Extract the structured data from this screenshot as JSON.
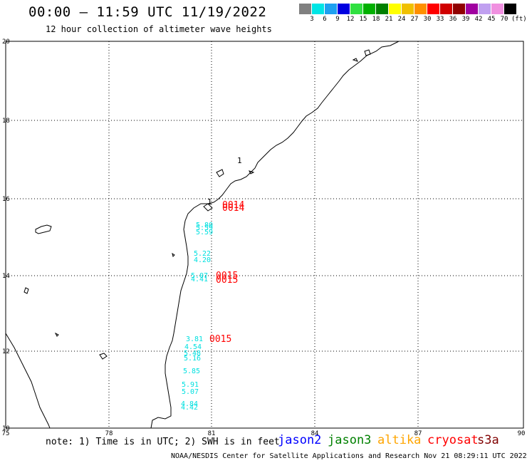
{
  "header": {
    "title": "00:00 – 11:59 UTC 11/19/2022",
    "subtitle": "12 hour collection of altimeter wave heights"
  },
  "color_scale": {
    "colors": [
      "#808080",
      "#00e5e5",
      "#1ea0f0",
      "#0000e0",
      "#30e040",
      "#00b000",
      "#008000",
      "#ffff00",
      "#f0c000",
      "#ff9000",
      "#ff0000",
      "#d00000",
      "#900000",
      "#a000a0",
      "#c0a0f0",
      "#f090e0",
      "#000000"
    ],
    "labels": [
      "3",
      "6",
      "9",
      "12",
      "15",
      "18",
      "21",
      "24",
      "27",
      "30",
      "33",
      "36",
      "39",
      "42",
      "45",
      "70"
    ],
    "unit": "(ft)"
  },
  "map": {
    "lat_labels": [
      "20",
      "18",
      "16",
      "14",
      "12",
      "10"
    ],
    "lon_labels": [
      "75",
      "78",
      "81",
      "84",
      "87",
      "90"
    ],
    "cryosat_color": "#ff0000",
    "wave_color": "#00e0e0",
    "cryosat_points": [
      "0014",
      "0014",
      "0015",
      "0015",
      "0015"
    ],
    "wave_heights": [
      "5.80",
      "5.59",
      "5.59",
      "5.22",
      "4.20",
      "5.07",
      "4.41",
      "3.81",
      "4.54",
      "5.48",
      "5.16",
      "5.85",
      "5.91",
      "5.07",
      "4.84",
      "4.42"
    ],
    "island_marks": [
      "1",
      "1"
    ]
  },
  "footer": {
    "note": "note: 1) Time is in UTC; 2) SWH is in feet",
    "satellites": [
      {
        "name": "jason2",
        "color": "#0000ff"
      },
      {
        "name": "jason3",
        "color": "#008000"
      },
      {
        "name": "altika",
        "color": "#ffa500"
      },
      {
        "name": "cryosat",
        "color": "#ff0000"
      },
      {
        "name": "s3a",
        "color": "#800000"
      }
    ],
    "credit": "NOAA/NESDIS Center for Satellite Applications and Research    Nov 21 08:29:11 UTC 2022"
  }
}
